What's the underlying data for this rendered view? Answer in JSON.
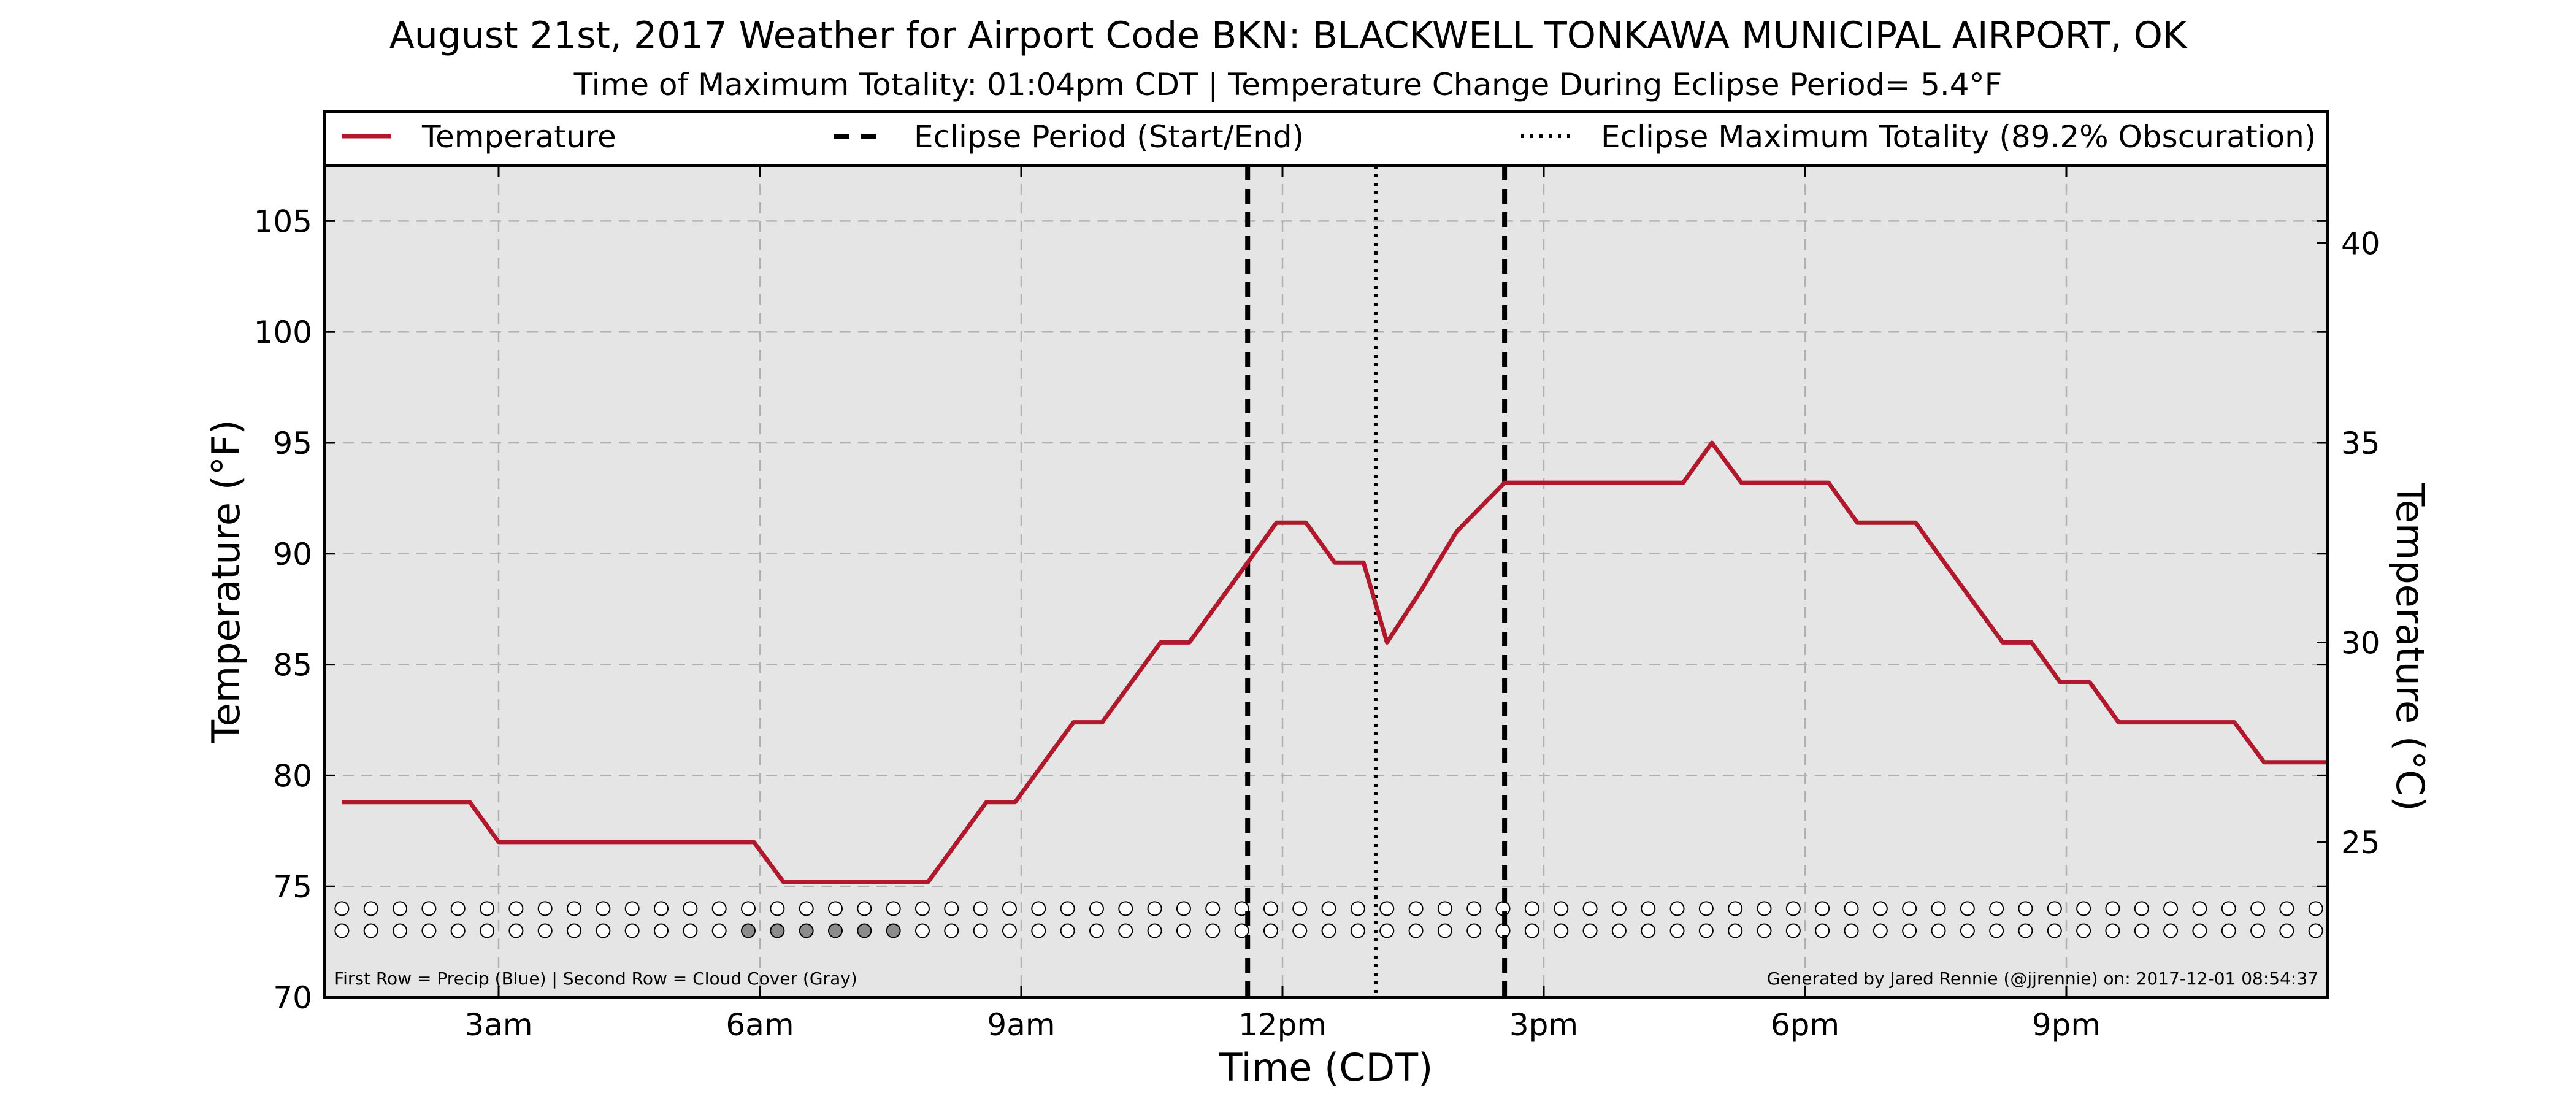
{
  "chart_data": {
    "type": "line",
    "title": "August 21st, 2017 Weather for Airport Code BKN: BLACKWELL TONKAWA MUNICIPAL AIRPORT, OK",
    "subtitle": "Time of Maximum Totality: 01:04pm CDT | Temperature Change During Eclipse Period= 5.4°F",
    "xlabel": "Time (CDT)",
    "ylabel": "Temperature (°F)",
    "ylabel_right": "Temperature (°C)",
    "x_unit": "hour of day (CDT)",
    "xlim": [
      1.0,
      24.0
    ],
    "ylim": [
      70,
      107.5
    ],
    "x_ticks": [
      {
        "value": 3,
        "label": "3am"
      },
      {
        "value": 6,
        "label": "6am"
      },
      {
        "value": 9,
        "label": "9am"
      },
      {
        "value": 12,
        "label": "12pm"
      },
      {
        "value": 15,
        "label": "3pm"
      },
      {
        "value": 18,
        "label": "6pm"
      },
      {
        "value": 21,
        "label": "9pm"
      }
    ],
    "y_ticks": [
      70,
      75,
      80,
      85,
      90,
      95,
      100,
      105
    ],
    "y_ticks_right": [
      25,
      30,
      35,
      40
    ],
    "grid": true,
    "legend_position": "top",
    "legend": [
      {
        "label": "Temperature",
        "style": "solid"
      },
      {
        "label": "Eclipse Period (Start/End)",
        "style": "dashed"
      },
      {
        "label": "Eclipse Maximum Totality (89.2% Obscuration)",
        "style": "dotted"
      }
    ],
    "series": [
      {
        "name": "Temperature",
        "color": "#b2182b",
        "points": [
          [
            1.2,
            78.8
          ],
          [
            2.0,
            78.8
          ],
          [
            2.67,
            78.8
          ],
          [
            3.0,
            77.0
          ],
          [
            4.0,
            77.0
          ],
          [
            5.0,
            77.0
          ],
          [
            5.93,
            77.0
          ],
          [
            6.27,
            75.2
          ],
          [
            7.0,
            75.2
          ],
          [
            7.6,
            75.2
          ],
          [
            7.93,
            75.2
          ],
          [
            8.6,
            78.8
          ],
          [
            8.93,
            78.8
          ],
          [
            9.6,
            82.4
          ],
          [
            9.93,
            82.4
          ],
          [
            10.6,
            86.0
          ],
          [
            10.93,
            86.0
          ],
          [
            11.6,
            89.6
          ],
          [
            11.93,
            91.4
          ],
          [
            12.27,
            91.4
          ],
          [
            12.6,
            89.6
          ],
          [
            12.93,
            89.6
          ],
          [
            13.2,
            86.0
          ],
          [
            13.6,
            88.4
          ],
          [
            14.0,
            91.0
          ],
          [
            14.55,
            93.2
          ],
          [
            16.6,
            93.2
          ],
          [
            16.93,
            95.0
          ],
          [
            17.27,
            93.2
          ],
          [
            17.93,
            93.2
          ],
          [
            18.27,
            93.2
          ],
          [
            18.6,
            91.4
          ],
          [
            19.27,
            91.4
          ],
          [
            19.6,
            89.6
          ],
          [
            20.27,
            86.0
          ],
          [
            20.6,
            86.0
          ],
          [
            20.93,
            84.2
          ],
          [
            21.27,
            84.2
          ],
          [
            21.6,
            82.4
          ],
          [
            22.27,
            82.4
          ],
          [
            22.93,
            82.4
          ],
          [
            23.27,
            80.6
          ],
          [
            23.6,
            80.6
          ],
          [
            24.0,
            80.6
          ]
        ]
      }
    ],
    "eclipse_start": 11.6,
    "eclipse_max": 13.07,
    "eclipse_end": 14.55,
    "marker_rows": {
      "precip_y": 74.0,
      "cloud_y": 73.0,
      "start": 1.2,
      "end": 24.0,
      "step": 0.3333,
      "cloud_filled_from": 5.6,
      "cloud_filled_to": 7.6
    },
    "footnote_left": "First Row = Precip (Blue) | Second Row = Cloud Cover (Gray)",
    "footnote_right": "Generated by Jared Rennie (@jjrennie) on: 2017-12-01 08:54:37"
  }
}
